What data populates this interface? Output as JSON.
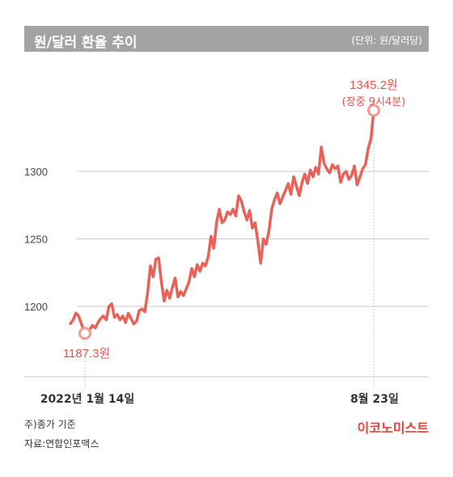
{
  "header": {
    "title": "원/달러 환율 추이",
    "unit": "(단위: 원/달러당)"
  },
  "footer": {
    "note1": "주)종가 기준",
    "note2": "자료:연합인포맥스",
    "brand": "이코노미스트"
  },
  "colors": {
    "line": "#e8625a",
    "marker": "#f29b93",
    "label": "#e8544c",
    "grid": "#c8c8c8",
    "title_bg": "#a3a3a3"
  },
  "chart_data": {
    "type": "line",
    "title": "원/달러 환율 추이",
    "ylim": [
      1150,
      1350
    ],
    "yticks": [
      1200,
      1250,
      1300
    ],
    "xlabels": [
      "2022년 1월 14일",
      "8월 23일"
    ],
    "start_label": "1187.3원",
    "end_label": "1345.2원",
    "end_sublabel": "(장중 9시4분)",
    "series": [
      {
        "values": [
          1187.3,
          1190,
          1195,
          1193,
          1187,
          1182,
          1179,
          1183,
          1186,
          1184,
          1188,
          1191,
          1193,
          1190,
          1200,
          1202,
          1192,
          1194,
          1190,
          1193,
          1188,
          1195,
          1191,
          1187,
          1189,
          1197,
          1198,
          1196,
          1210,
          1230,
          1222,
          1235,
          1236,
          1218,
          1204,
          1212,
          1206,
          1214,
          1221,
          1207,
          1211,
          1208,
          1213,
          1218,
          1228,
          1222,
          1231,
          1226,
          1232,
          1230,
          1237,
          1252,
          1243,
          1262,
          1272,
          1262,
          1264,
          1270,
          1268,
          1272,
          1267,
          1282,
          1278,
          1270,
          1264,
          1271,
          1258,
          1262,
          1248,
          1232,
          1250,
          1246,
          1256,
          1272,
          1279,
          1284,
          1276,
          1281,
          1286,
          1291,
          1283,
          1296,
          1289,
          1282,
          1292,
          1298,
          1291,
          1301,
          1296,
          1303,
          1298,
          1318,
          1306,
          1302,
          1299,
          1305,
          1302,
          1304,
          1292,
          1298,
          1300,
          1294,
          1297,
          1304,
          1290,
          1296,
          1302,
          1305,
          1317,
          1324,
          1345.2
        ]
      }
    ]
  }
}
